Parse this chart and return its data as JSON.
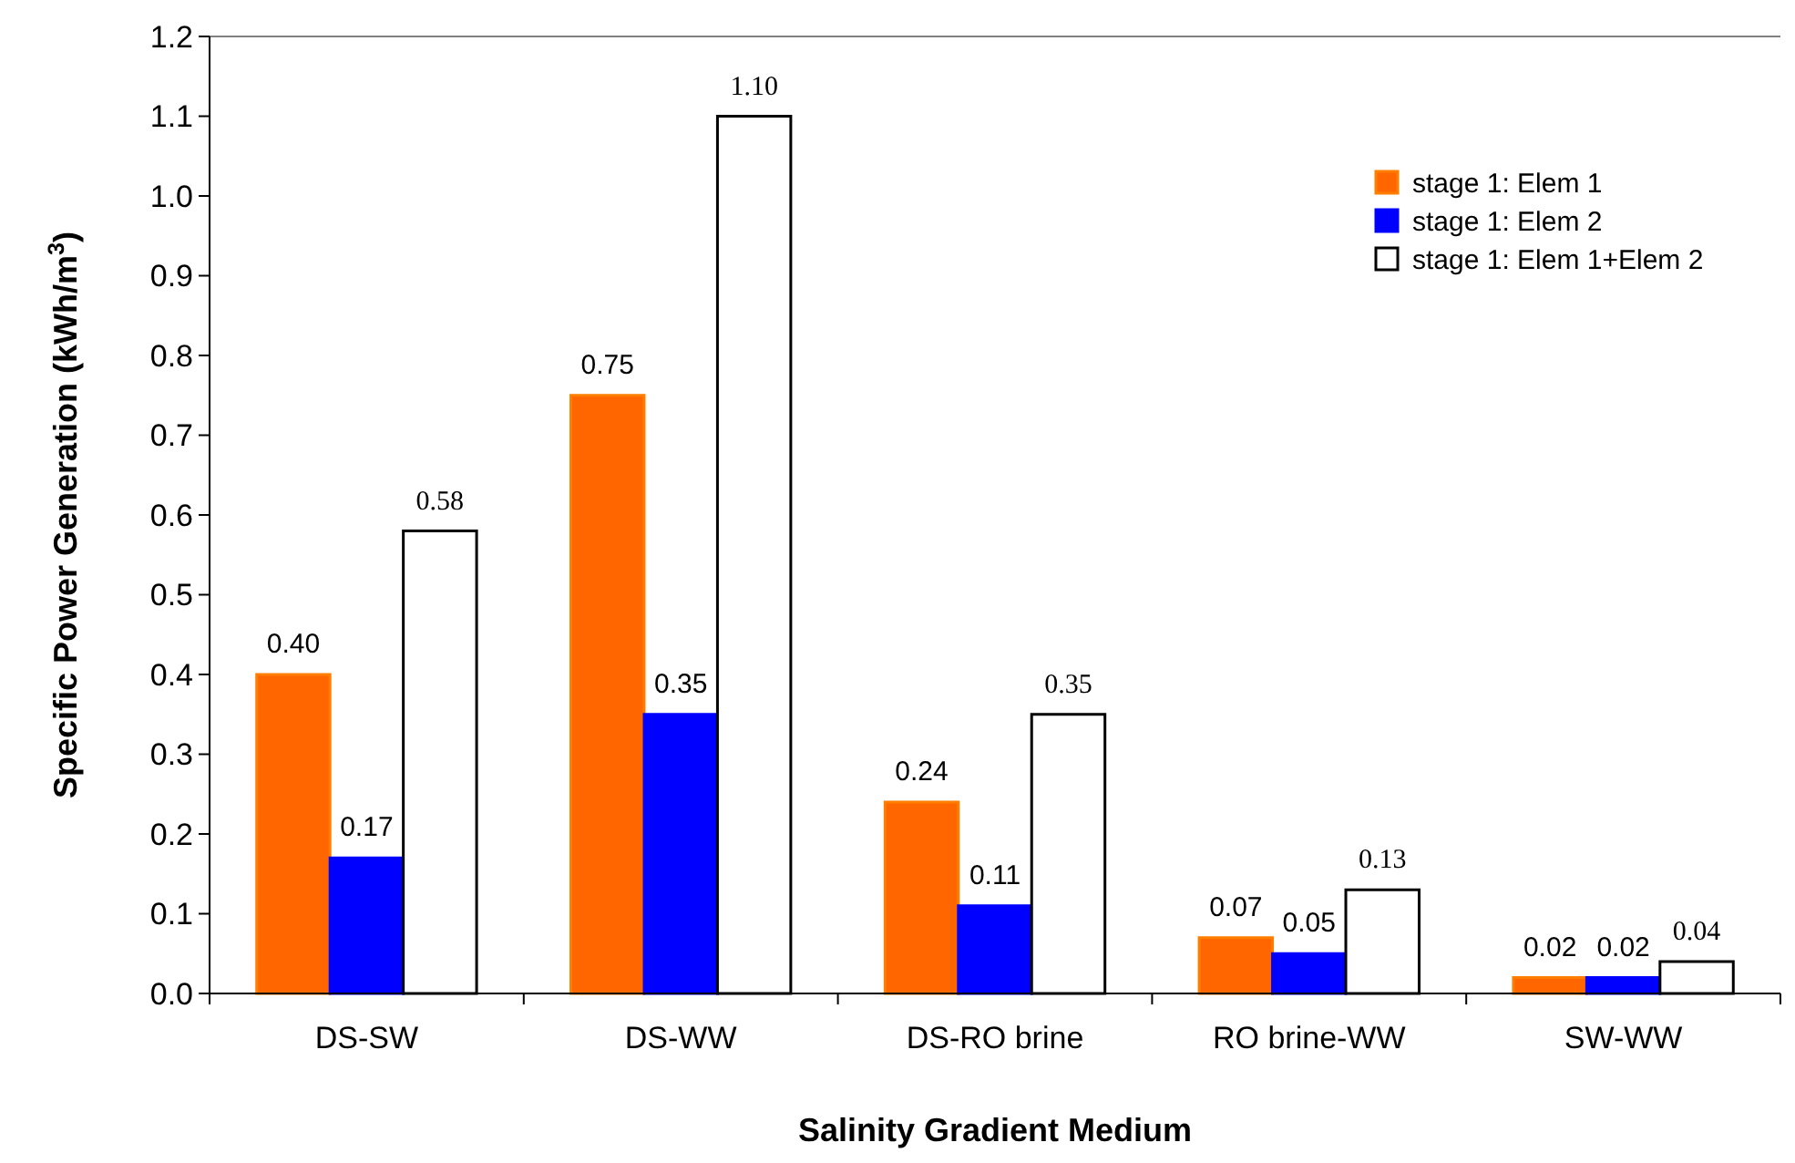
{
  "chart_data": {
    "type": "bar",
    "xlabel": "Salinity Gradient Medium",
    "ylabel": "Specific Power Generation  (kWh/m$^{3}$)",
    "categories": [
      "DS-SW",
      "DS-WW",
      "DS-RO brine",
      "RO brine-WW",
      "SW-WW"
    ],
    "series": [
      {
        "name": "stage 1: Elem 1",
        "color": "#ff6600",
        "values": [
          0.4,
          0.75,
          0.24,
          0.07,
          0.02
        ],
        "value_labels": [
          "0.40",
          "0.75",
          "0.24",
          "0.07",
          "0.02"
        ]
      },
      {
        "name": "stage 1: Elem 2",
        "color": "#0000ff",
        "values": [
          0.17,
          0.35,
          0.11,
          0.05,
          0.02
        ],
        "value_labels": [
          "0.17",
          "0.35",
          "0.11",
          "0.05",
          "0.02"
        ]
      },
      {
        "name": "stage 1: Elem 1+Elem 2",
        "color": "#ffffff",
        "values": [
          0.58,
          1.1,
          0.35,
          0.13,
          0.04
        ],
        "value_labels": [
          "0.58",
          "1.10",
          "0.35",
          "0.13",
          "0.04"
        ]
      }
    ],
    "ylim": [
      0,
      1.2
    ],
    "yticks": [
      {
        "value": 0,
        "label": "0.0"
      },
      0.1,
      0.2,
      0.3,
      0.4,
      0.5,
      0.6,
      0.7,
      0.8,
      0.9,
      {
        "value": 1,
        "label": "1.0"
      },
      1.1,
      1.2
    ],
    "grid": false,
    "legend": "top right"
  }
}
